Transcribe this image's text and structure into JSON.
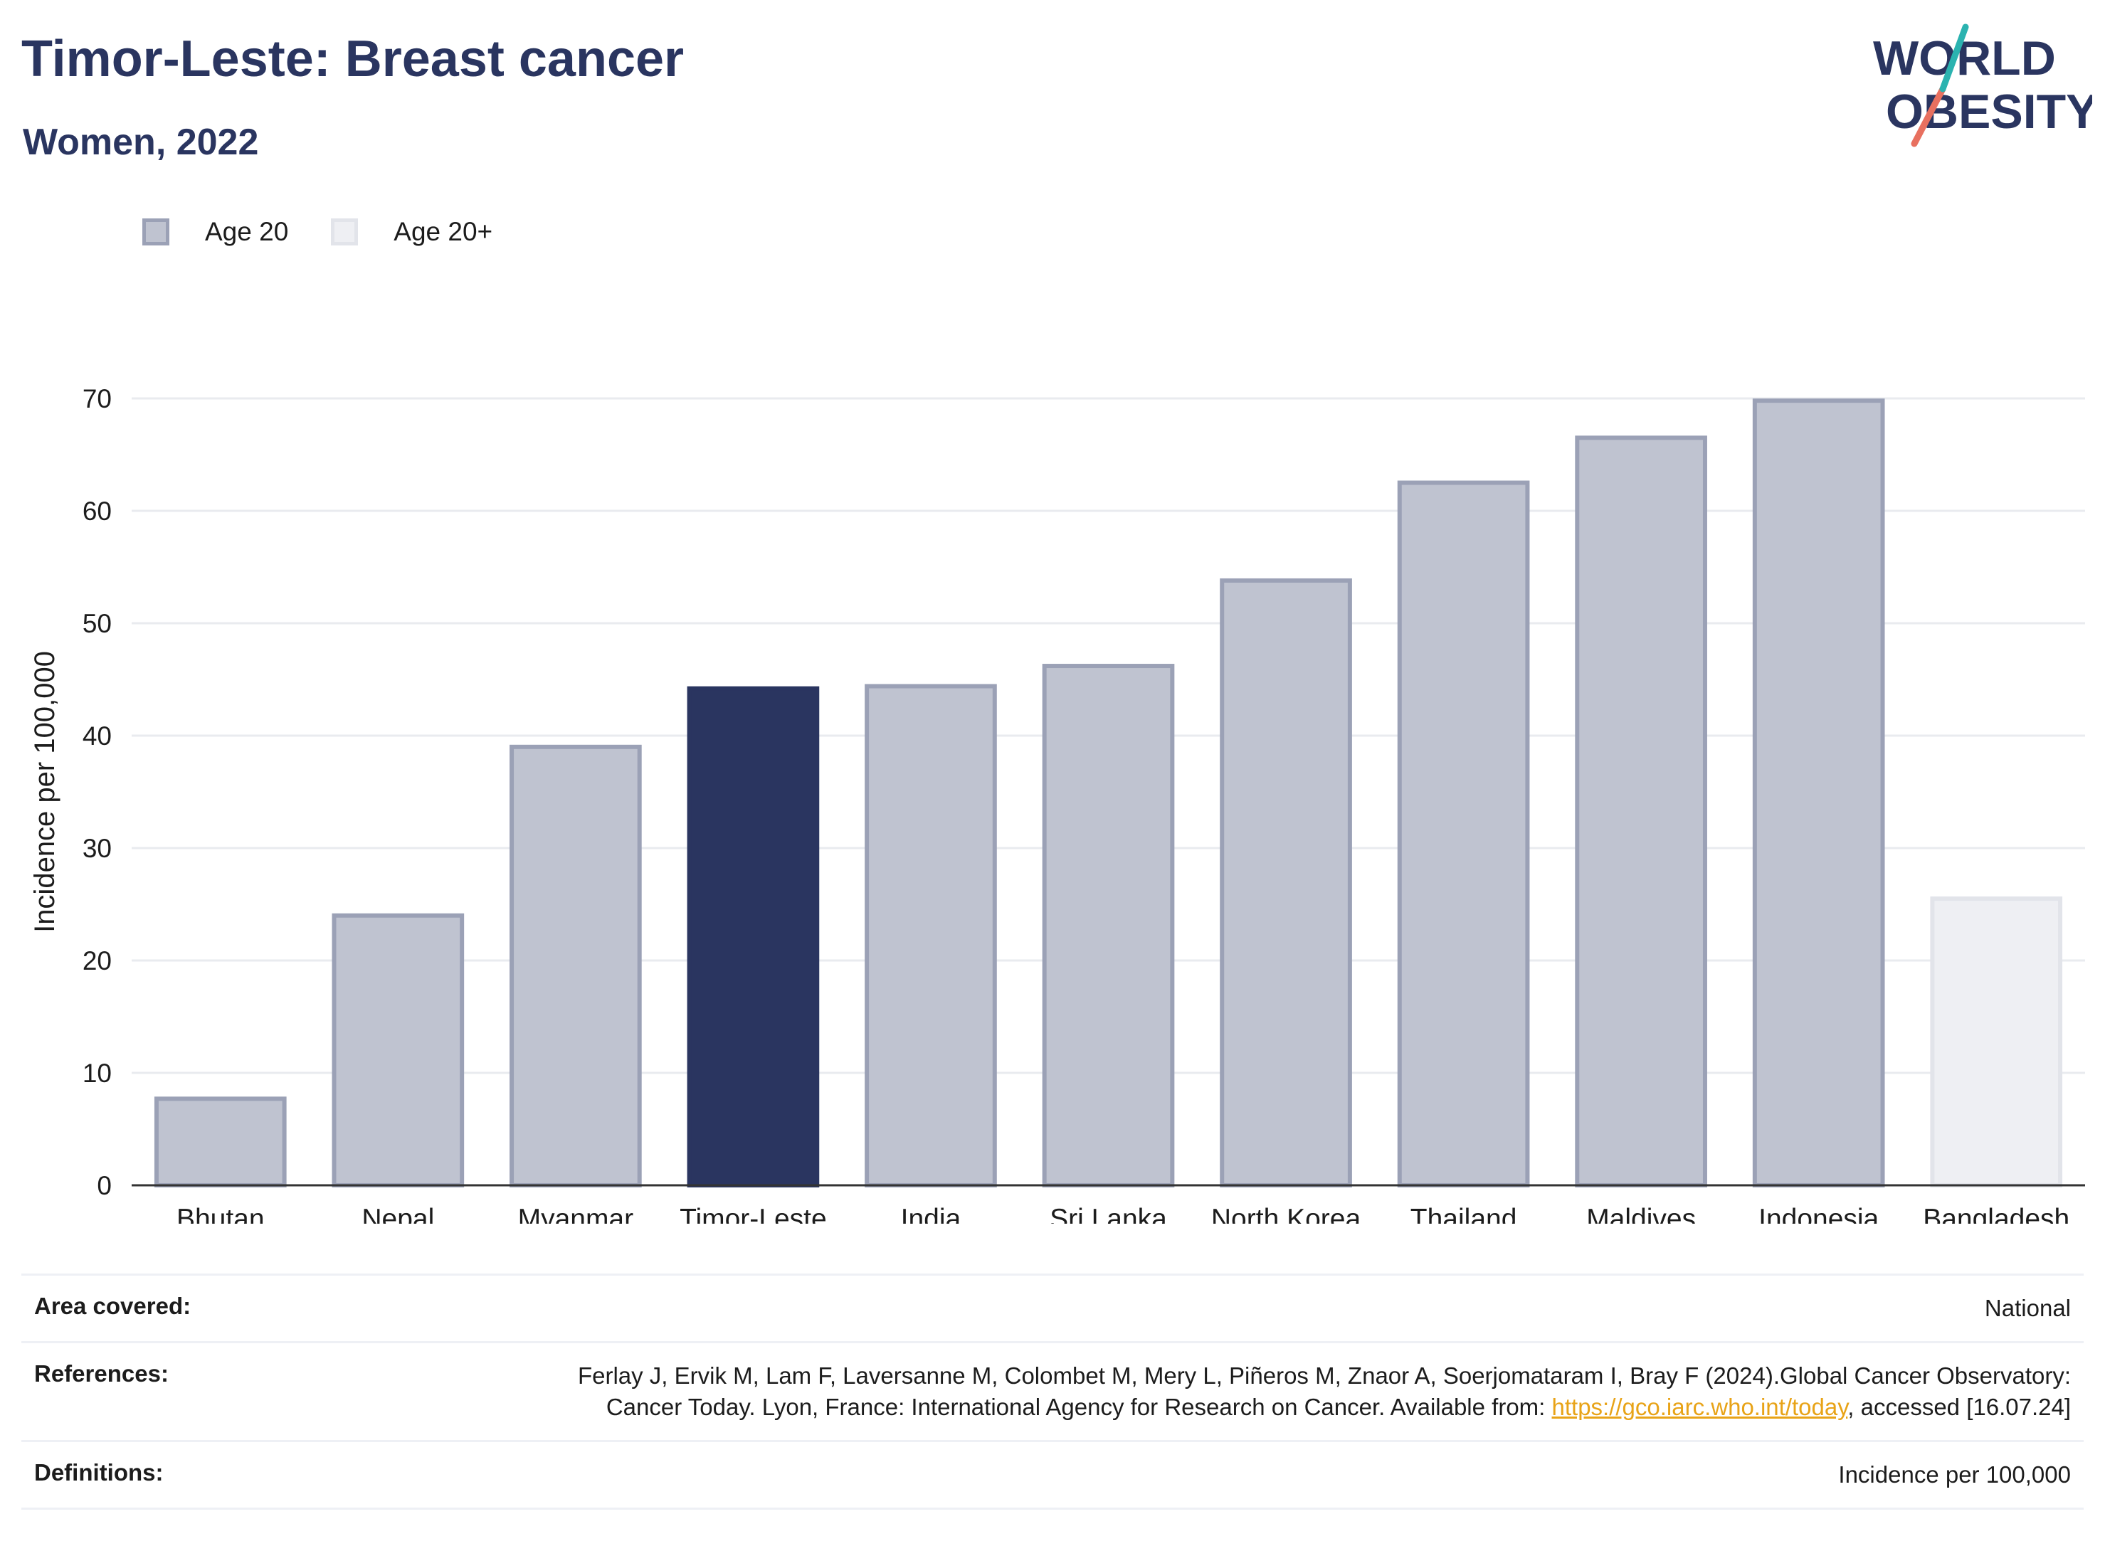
{
  "header": {
    "title": "Timor-Leste: Breast cancer",
    "subtitle": "Women, 2022"
  },
  "logo": {
    "line1": "WORLD",
    "line2": "OBESITY"
  },
  "legend": [
    {
      "label": "Age 20",
      "color": "#bfc3d0",
      "border": "#9ba1b6"
    },
    {
      "label": "Age 20+",
      "color": "#eeeff3",
      "border": "#e2e4ea"
    }
  ],
  "colors": {
    "highlight": "#2a3560",
    "bar": "#bfc3d0",
    "bar_border": "#9ba1b6",
    "bar_light": "#eeeff3",
    "axis": "#333333",
    "grid": "#e9ebef"
  },
  "chart_data": {
    "type": "bar",
    "ylabel": "Incidence per 100,000",
    "ylim": [
      0,
      70
    ],
    "yticks": [
      0,
      10,
      20,
      30,
      40,
      50,
      60,
      70
    ],
    "categories": [
      "Bhutan",
      "Nepal",
      "Myanmar",
      "Timor-Leste",
      "India",
      "Sri Lanka",
      "North Korea",
      "Thailand",
      "Maldives",
      "Indonesia",
      "Bangladesh"
    ],
    "values": [
      7.7,
      24.0,
      39.0,
      44.2,
      44.4,
      46.2,
      53.8,
      62.5,
      66.5,
      69.8,
      25.5
    ],
    "groups": [
      "Age 20",
      "Age 20",
      "Age 20",
      "Age 20",
      "Age 20",
      "Age 20",
      "Age 20",
      "Age 20",
      "Age 20",
      "Age 20",
      "Age 20+"
    ],
    "highlight": "Timor-Leste",
    "grid": true
  },
  "footer": {
    "area_label": "Area covered:",
    "area_value": "National",
    "ref_label": "References:",
    "ref_text_1": "Ferlay J, Ervik M, Lam F, Laversanne M, Colombet M, Mery L, Piñeros M, Znaor A, Soerjomataram I, Bray F (2024).Global Cancer Observatory: Cancer Today. Lyon, France: International Agency for Research on Cancer. Available from: ",
    "ref_link": "https://gco.iarc.who.int/today",
    "ref_text_2": ", accessed [16.07.24]",
    "def_label": "Definitions:",
    "def_value": "Incidence per 100,000"
  }
}
